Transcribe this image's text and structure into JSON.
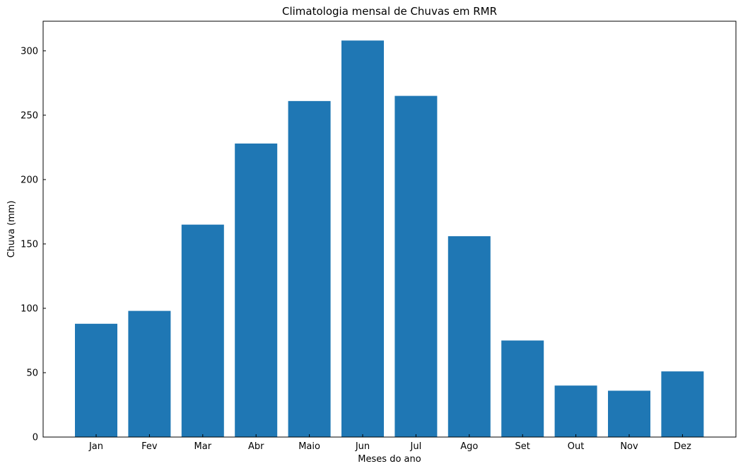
{
  "chart_data": {
    "type": "bar",
    "title": "Climatologia mensal de Chuvas em RMR",
    "xlabel": "Meses do ano",
    "ylabel": "Chuva (mm)",
    "categories": [
      "Jan",
      "Fev",
      "Mar",
      "Abr",
      "Maio",
      "Jun",
      "Jul",
      "Ago",
      "Set",
      "Out",
      "Nov",
      "Dez"
    ],
    "values": [
      88,
      98,
      165,
      228,
      261,
      308,
      265,
      156,
      75,
      40,
      36,
      51
    ],
    "ylim": [
      0,
      323
    ],
    "yticks": [
      0,
      50,
      100,
      150,
      200,
      250,
      300
    ],
    "bar_color": "#1f77b4",
    "grid": false
  }
}
